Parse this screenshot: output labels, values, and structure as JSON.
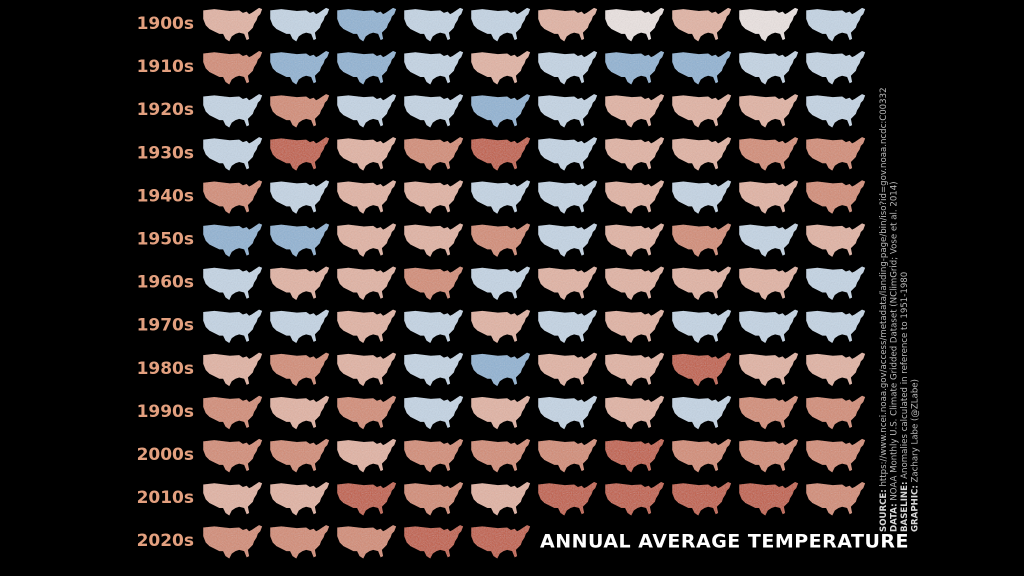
{
  "rows": [
    {
      "label": "1900s",
      "colors": [
        "#e3b3a3",
        "#c5d6e6",
        "#8fb3d4",
        "#c5d6e6",
        "#c5d6e6",
        "#e3b3a3",
        "#ece4e2",
        "#e3b3a3",
        "#ece4e2",
        "#c5d6e6"
      ]
    },
    {
      "label": "1910s",
      "colors": [
        "#d48a72",
        "#8fb3d4",
        "#8fb3d4",
        "#c5d6e6",
        "#e3b3a3",
        "#c5d6e6",
        "#8fb3d4",
        "#8fb3d4",
        "#c5d6e6",
        "#c5d6e6"
      ]
    },
    {
      "label": "1920s",
      "colors": [
        "#c5d6e6",
        "#d48a72",
        "#c5d6e6",
        "#c5d6e6",
        "#8fb3d4",
        "#c5d6e6",
        "#e3b3a3",
        "#e3b3a3",
        "#e3b3a3",
        "#c5d6e6"
      ]
    },
    {
      "label": "1930s",
      "colors": [
        "#c5d6e6",
        "#c2583d",
        "#e3b3a3",
        "#d48a72",
        "#c2583d",
        "#c5d6e6",
        "#e3b3a3",
        "#e3b3a3",
        "#d48a72",
        "#d48a72"
      ]
    },
    {
      "label": "1940s",
      "colors": [
        "#d48a72",
        "#c5d6e6",
        "#e3b3a3",
        "#e3b3a3",
        "#c5d6e6",
        "#c5d6e6",
        "#e3b3a3",
        "#c5d6e6",
        "#e3b3a3",
        "#d48a72"
      ]
    },
    {
      "label": "1950s",
      "colors": [
        "#8fb3d4",
        "#8fb3d4",
        "#e3b3a3",
        "#e3b3a3",
        "#d48a72",
        "#c5d6e6",
        "#e3b3a3",
        "#d48a72",
        "#c5d6e6",
        "#e3b3a3"
      ]
    },
    {
      "label": "1960s",
      "colors": [
        "#c5d6e6",
        "#e3b3a3",
        "#e3b3a3",
        "#d48a72",
        "#c5d6e6",
        "#e3b3a3",
        "#e3b3a3",
        "#e3b3a3",
        "#e3b3a3",
        "#c5d6e6"
      ]
    },
    {
      "label": "1970s",
      "colors": [
        "#c5d6e6",
        "#c5d6e6",
        "#e3b3a3",
        "#c5d6e6",
        "#e3b3a3",
        "#c5d6e6",
        "#e3b3a3",
        "#c5d6e6",
        "#c5d6e6",
        "#c5d6e6"
      ]
    },
    {
      "label": "1980s",
      "colors": [
        "#e3b3a3",
        "#d48a72",
        "#e3b3a3",
        "#c5d6e6",
        "#8fb3d4",
        "#e3b3a3",
        "#e3b3a3",
        "#c2583d",
        "#e3b3a3",
        "#e3b3a3"
      ]
    },
    {
      "label": "1990s",
      "colors": [
        "#d48a72",
        "#e3b3a3",
        "#d48a72",
        "#c5d6e6",
        "#e3b3a3",
        "#c5d6e6",
        "#e3b3a3",
        "#c5d6e6",
        "#d48a72",
        "#d48a72"
      ]
    },
    {
      "label": "2000s",
      "colors": [
        "#d48a72",
        "#d48a72",
        "#e3b3a3",
        "#d48a72",
        "#d48a72",
        "#d48a72",
        "#c2583d",
        "#d48a72",
        "#d48a72",
        "#d48a72"
      ]
    },
    {
      "label": "2010s",
      "colors": [
        "#e3b3a3",
        "#e3b3a3",
        "#c2583d",
        "#d48a72",
        "#e3b3a3",
        "#c2583d",
        "#c2583d",
        "#c2583d",
        "#c2583d",
        "#d48a72"
      ]
    },
    {
      "label": "2020s",
      "colors": [
        "#d48a72",
        "#d48a72",
        "#d48a72",
        "#c2583d",
        "#c2583d"
      ]
    }
  ],
  "title": "ANNUAL AVERAGE TEMPERATURE",
  "credits": [
    {
      "key": "SOURCE:",
      "text": "https://www.ncei.noaa.gov/access/metadata/landing-page/bin/iso?id=gov.noaa.ncdc:C00332"
    },
    {
      "key": "DATA:",
      "text": "NOAA Monthly U.S. Climate Gridded Dataset (NClimGrid; Vose et al. 2014)"
    },
    {
      "key": "BASELINE:",
      "text": "Anomalies calculated in reference to 1951-1980"
    },
    {
      "key": "GRAPHIC:",
      "text": "Zachary Labe (@ZLabe)"
    }
  ]
}
